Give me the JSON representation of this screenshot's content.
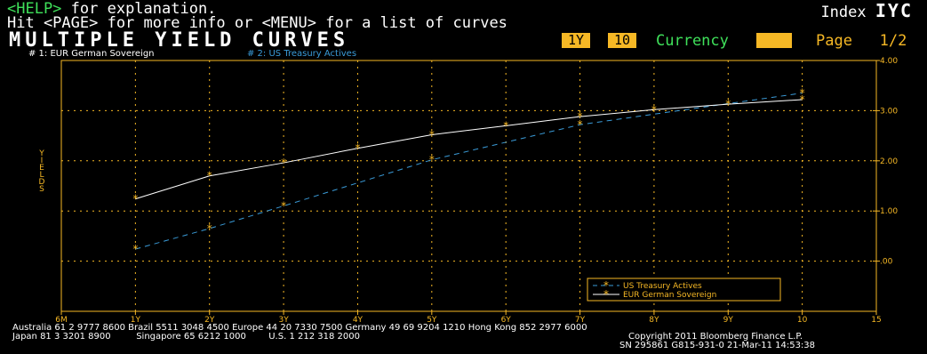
{
  "header": {
    "help_key": "<HELP>",
    "help_rest": " for explanation.",
    "hit_line": "Hit <PAGE> for more info or <MENU> for a list of curves",
    "title": "MULTIPLE YIELD CURVES",
    "index_prefix": "Index",
    "index_code": "IYC",
    "chip_1": "1Y",
    "chip_2": "10",
    "currency": "Currency",
    "page_word": "Page",
    "page_num": "1/2"
  },
  "series_tags": {
    "s1": "# 1: EUR German Sovereign",
    "s2": "# 2: US Treasury Actives"
  },
  "footer": {
    "line1": "Australia 61 2 9777 8600 Brazil 5511 3048 4500 Europe 44 20 7330 7500 Germany 49 69 9204 1210 Hong Kong 852 2977 6000",
    "line2": "Japan 81 3 3201 8900         Singapore 65 6212 1000        U.S. 1 212 318 2000",
    "copyright": "Copyright 2011 Bloomberg Finance L.P.",
    "sn": "SN 295861 G815-931-0 21-Mar-11 14:53:38"
  },
  "colors": {
    "background": "#000000",
    "axis": "#f6b825",
    "eur": "#ffffff",
    "us": "#3a9bd8",
    "marker": "#f6b825",
    "accent_green": "#3fe05a"
  },
  "chart_data": {
    "type": "line",
    "categories": [
      "6M",
      "1Y",
      "2Y",
      "3Y",
      "4Y",
      "5Y",
      "6Y",
      "7Y",
      "8Y",
      "9Y",
      "10",
      "15"
    ],
    "ylabel": "YIELDS",
    "xlabel": "",
    "ylim": [
      -1.0,
      4.0
    ],
    "yticks": [
      ".00",
      "1.00",
      "2.00",
      "3.00",
      "4.00"
    ],
    "ytick_values": [
      0,
      1,
      2,
      3,
      4
    ],
    "grid": true,
    "legend_position": "bottom-right",
    "series": [
      {
        "name": "US Treasury Actives",
        "style": "dashed",
        "color": "#3a9bd8",
        "x": [
          "1Y",
          "2Y",
          "3Y",
          "5Y",
          "7Y",
          "10"
        ],
        "values": [
          0.24,
          0.65,
          1.1,
          2.02,
          2.72,
          3.35
        ]
      },
      {
        "name": "EUR German Sovereign",
        "style": "solid",
        "color": "#ffffff",
        "x": [
          "1Y",
          "2Y",
          "3Y",
          "4Y",
          "5Y",
          "6Y",
          "7Y",
          "8Y",
          "9Y",
          "10"
        ],
        "values": [
          1.24,
          1.7,
          1.96,
          2.25,
          2.52,
          2.7,
          2.88,
          3.02,
          3.13,
          3.22
        ]
      }
    ]
  }
}
